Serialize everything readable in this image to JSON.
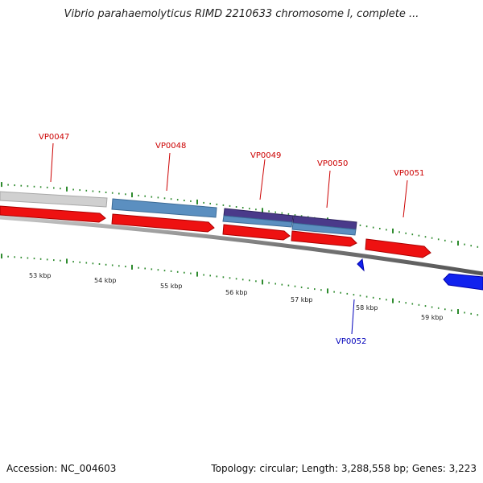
{
  "title": "Vibrio parahaemolyticus RIMD 2210633 chromosome I, complete ...",
  "footer": {
    "accession": "Accession: NC_004603",
    "summary": "Topology: circular; Length: 3,288,558 bp; Genes: 3,223"
  },
  "colors": {
    "plus_strand": "#ee1111",
    "minus_strand": "#1122ee",
    "domain_light": "#5b8fc0",
    "domain_dark": "#4a3a8a",
    "domain_gray": "#cfcfcf",
    "tick": "#2e8b2e",
    "backbone": "#888888",
    "label_plus": "#cc0000",
    "label_minus": "#0000bb"
  },
  "scale": {
    "labels": [
      "53 kbp",
      "54 kbp",
      "55 kbp",
      "56 kbp",
      "57 kbp",
      "58 kbp",
      "59 kbp"
    ]
  },
  "genes": [
    {
      "name": "VP0047",
      "strand": "plus"
    },
    {
      "name": "VP0048",
      "strand": "plus"
    },
    {
      "name": "VP0049",
      "strand": "plus"
    },
    {
      "name": "VP0050",
      "strand": "plus"
    },
    {
      "name": "VP0051",
      "strand": "plus"
    },
    {
      "name": "VP0052",
      "strand": "minus"
    }
  ]
}
